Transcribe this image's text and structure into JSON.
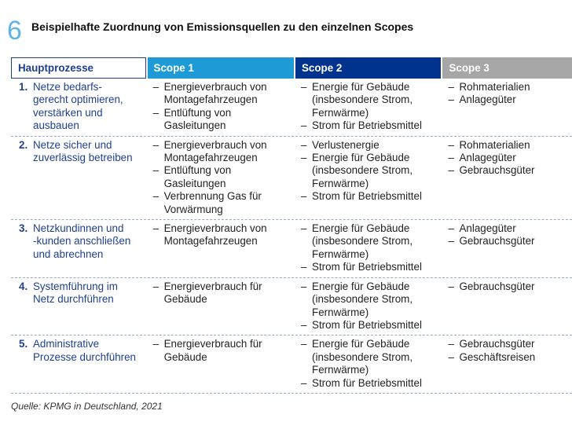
{
  "header": {
    "number": "6",
    "title": "Beispielhafte Zuordnung von Emissionsquellen zu den einzelnen Scopes"
  },
  "table": {
    "columns": [
      "Hauptprozesse",
      "Scope 1",
      "Scope 2",
      "Scope 3"
    ],
    "rows": [
      {
        "number": "1.",
        "process": [
          "Netze bedarfs-",
          "gerecht optimieren,",
          "verstärken und",
          "ausbauen"
        ],
        "scopes": [
          [
            [
              "Energieverbrauch von",
              "Montagefahrzeugen"
            ],
            [
              "Entlüftung von",
              "Gasleitungen"
            ]
          ],
          [
            [
              "Energie für Gebäude",
              "(insbesondere Strom,",
              "Fernwärme)"
            ],
            [
              "Strom für Betriebsmittel"
            ]
          ],
          [
            [
              "Rohmaterialien"
            ],
            [
              "Anlagegüter"
            ]
          ]
        ]
      },
      {
        "number": "2.",
        "process": [
          "Netze sicher und",
          "zuverlässig betreiben"
        ],
        "scopes": [
          [
            [
              "Energieverbrauch von",
              "Montagefahrzeugen"
            ],
            [
              "Entlüftung von",
              "Gasleitungen"
            ],
            [
              "Verbrennung Gas für",
              "Vorwärmung"
            ]
          ],
          [
            [
              "Verlustenergie"
            ],
            [
              "Energie für Gebäude",
              "(insbesondere Strom,",
              "Fernwärme)"
            ],
            [
              "Strom für Betriebsmittel"
            ]
          ],
          [
            [
              "Rohmaterialien"
            ],
            [
              "Anlagegüter"
            ],
            [
              "Gebrauchsgüter"
            ]
          ]
        ]
      },
      {
        "number": "3.",
        "process": [
          "Netzkundinnen und",
          "-kunden anschließen",
          "und abrechnen"
        ],
        "scopes": [
          [
            [
              "Energieverbrauch von",
              "Montagefahrzeugen"
            ]
          ],
          [
            [
              "Energie für Gebäude",
              "(insbesondere Strom,",
              "Fernwärme)"
            ],
            [
              "Strom für Betriebsmittel"
            ]
          ],
          [
            [
              "Anlagegüter"
            ],
            [
              "Gebrauchsgüter"
            ]
          ]
        ]
      },
      {
        "number": "4.",
        "process": [
          "Systemführung im",
          "Netz durchführen"
        ],
        "scopes": [
          [
            [
              "Energieverbrauch für",
              "Gebäude"
            ]
          ],
          [
            [
              "Energie für Gebäude",
              "(insbesondere Strom,",
              "Fernwärme)"
            ],
            [
              "Strom für Betriebsmittel"
            ]
          ],
          [
            [
              "Gebrauchsgüter"
            ]
          ]
        ]
      },
      {
        "number": "5.",
        "process": [
          "Administrative",
          "Prozesse durchführen"
        ],
        "scopes": [
          [
            [
              "Energieverbrauch für",
              "Gebäude"
            ]
          ],
          [
            [
              "Energie für Gebäude",
              "(insbesondere Strom,",
              "Fernwärme)"
            ],
            [
              "Strom für Betriebsmittel"
            ]
          ],
          [
            [
              "Gebrauchsgüter"
            ],
            [
              "Geschäftsreisen"
            ]
          ]
        ]
      }
    ]
  },
  "source": "Quelle: KPMG in Deutschland, 2021"
}
